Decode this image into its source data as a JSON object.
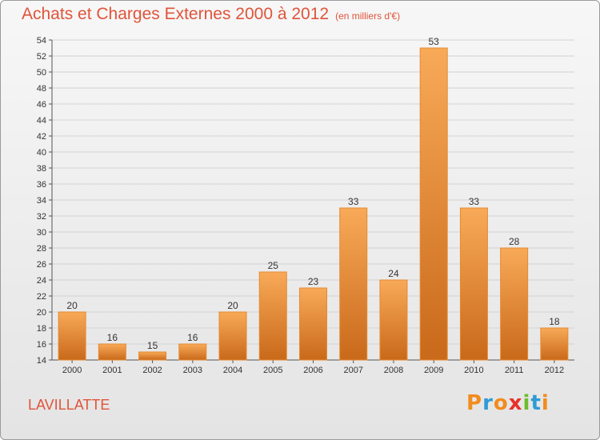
{
  "title": "Achats et Charges Externes 2000 à 2012",
  "subtitle": "(en milliers d'€)",
  "place": "LAVILLATTE",
  "logo": {
    "text": "Proxiti",
    "letter_colors": [
      "#f28c1e",
      "#2e9bd6",
      "#f28c1e",
      "#e8302a",
      "#6cbd2e",
      "#2e9bd6",
      "#f28c1e"
    ]
  },
  "colors": {
    "title": "#e0543a",
    "bar_light": "#f8aa58",
    "bar_dark": "#c9691a",
    "grid": "#d2d2d2"
  },
  "chart_data": {
    "type": "bar",
    "categories": [
      "2000",
      "2001",
      "2002",
      "2003",
      "2004",
      "2005",
      "2006",
      "2007",
      "2008",
      "2009",
      "2010",
      "2011",
      "2012"
    ],
    "values": [
      20,
      16,
      15,
      16,
      20,
      25,
      23,
      33,
      24,
      53,
      33,
      28,
      18
    ],
    "ylim": [
      14,
      54
    ],
    "yticks": [
      14,
      16,
      18,
      20,
      22,
      24,
      26,
      28,
      30,
      32,
      34,
      36,
      38,
      40,
      42,
      44,
      46,
      48,
      50,
      52,
      54
    ],
    "grid": true
  }
}
